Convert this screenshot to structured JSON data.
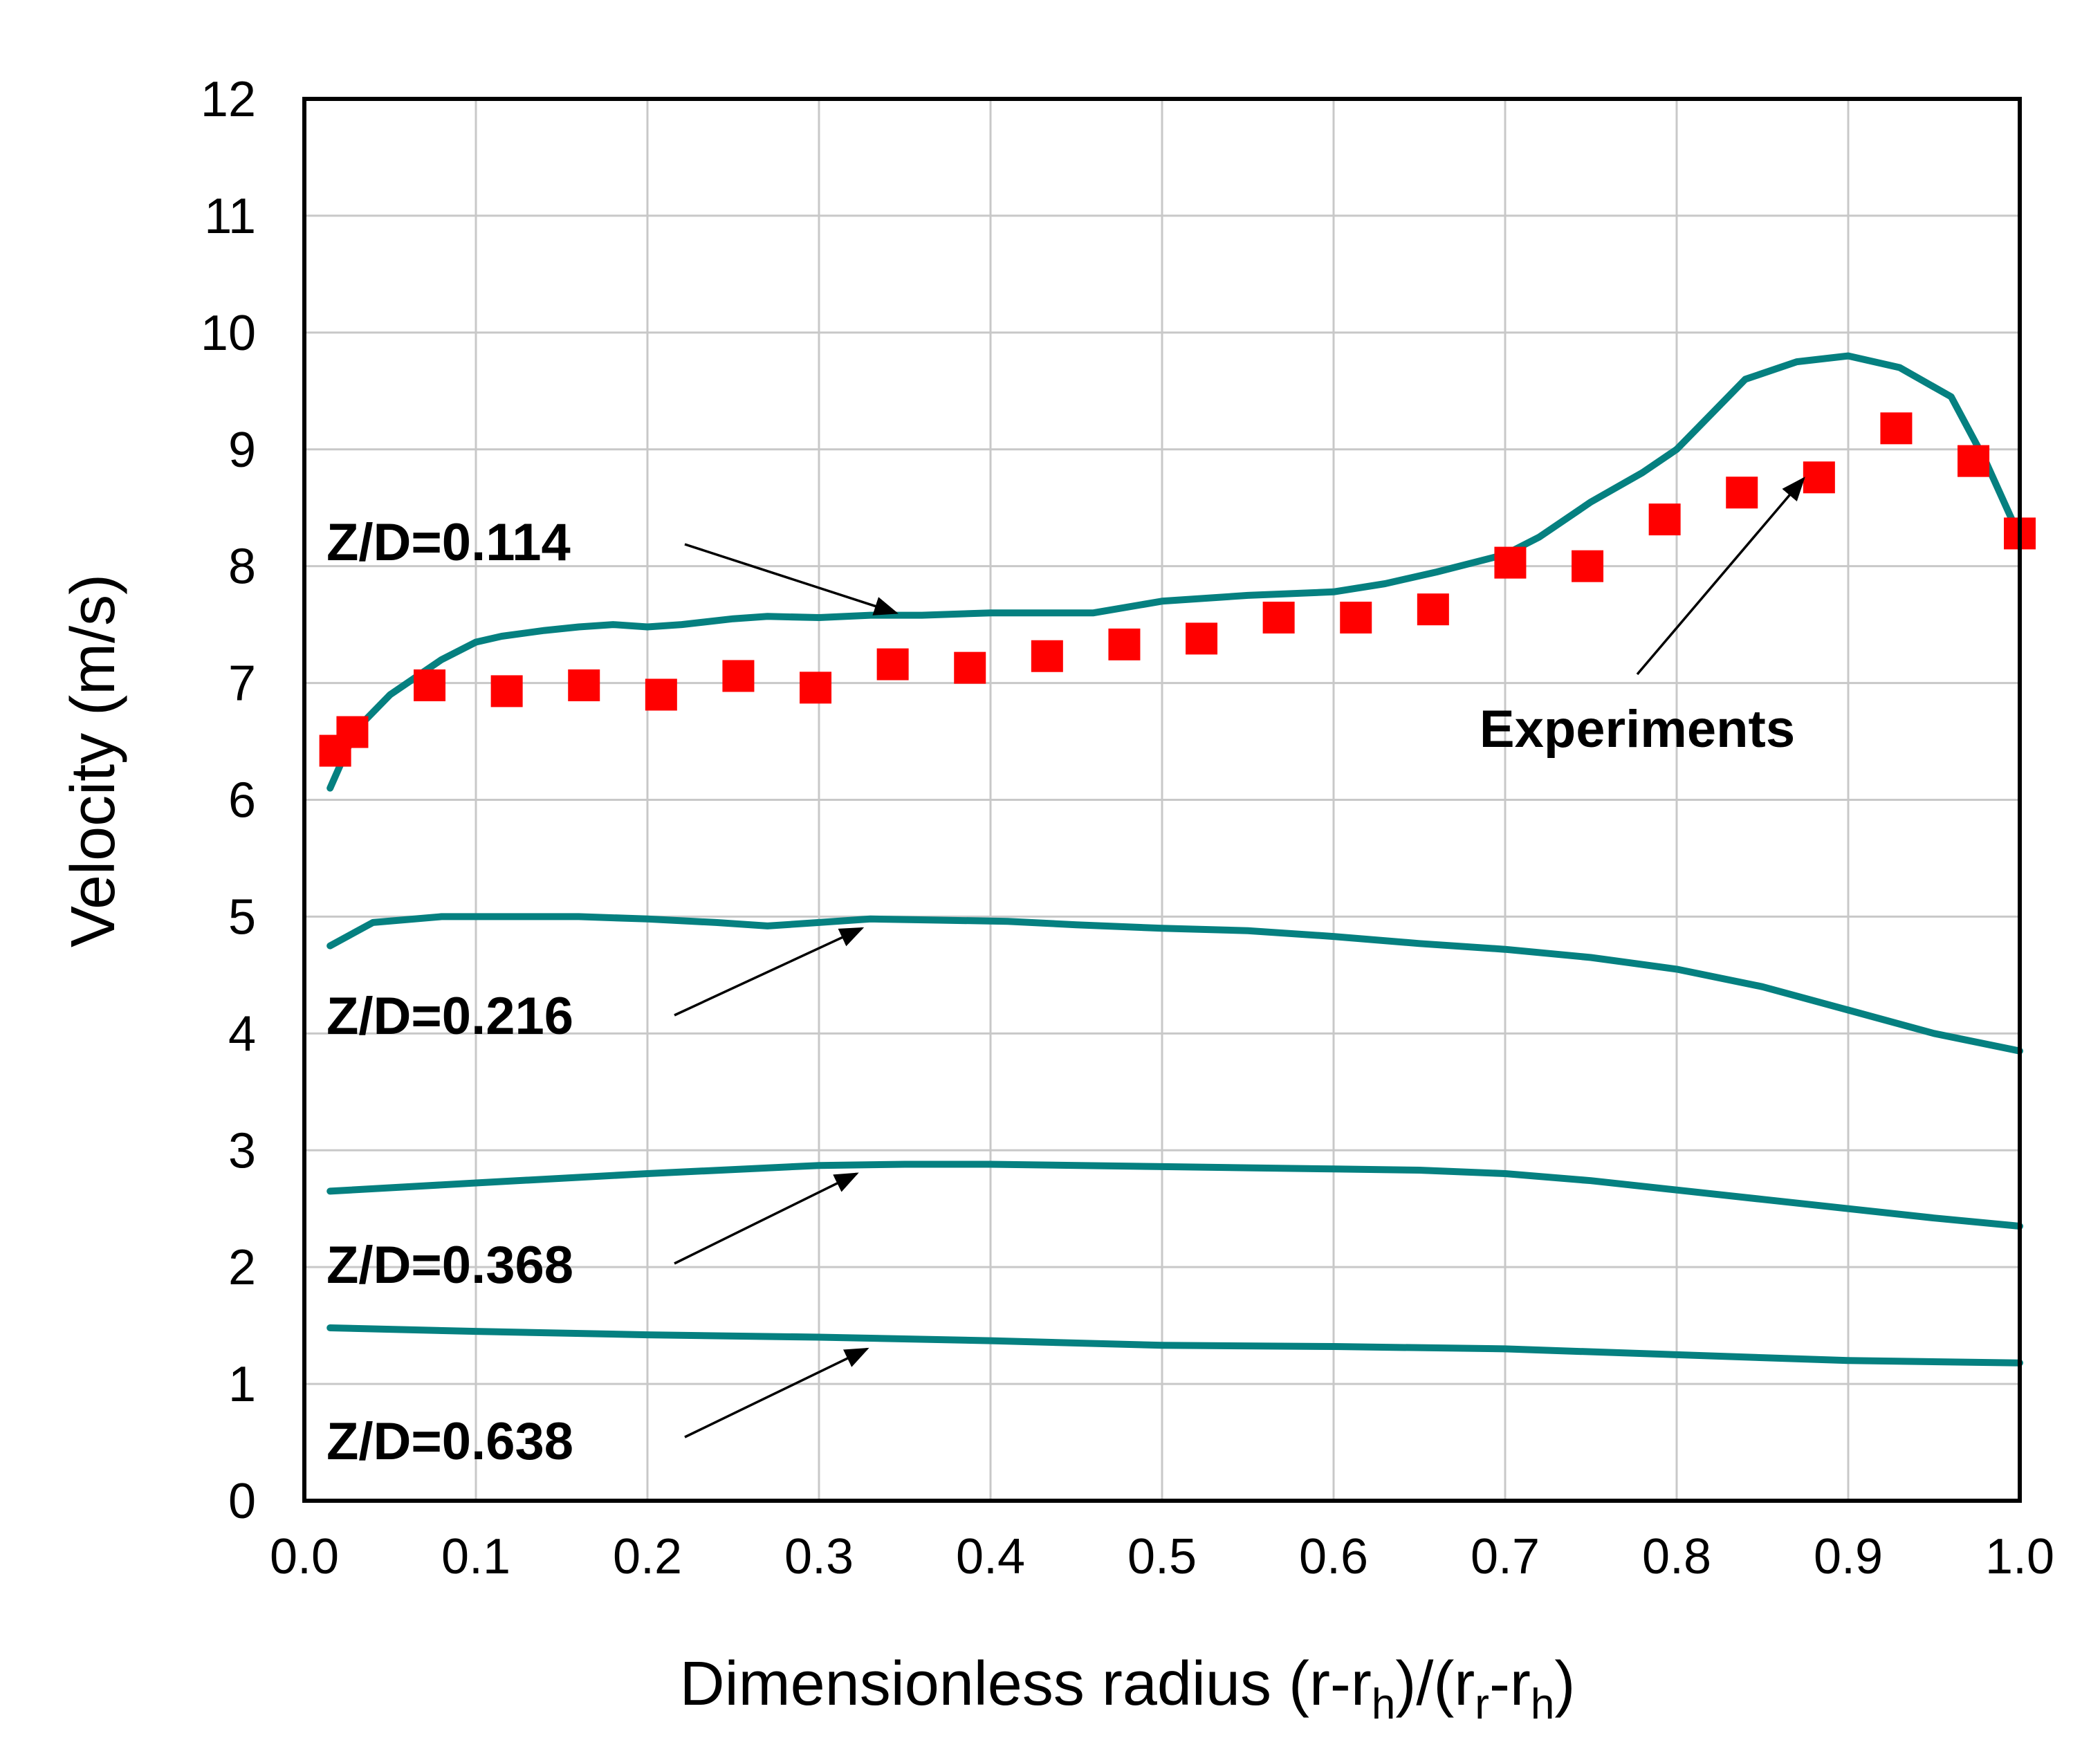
{
  "chart_data": {
    "type": "line",
    "xlabel_main": "Dimensionless radius (r-r",
    "xlabel_sub1": "h",
    "xlabel_mid": ")/(r",
    "xlabel_sub2": "r",
    "xlabel_mid2": "-r",
    "xlabel_sub3": "h",
    "xlabel_end": ")",
    "ylabel": "Velocity (m/s)",
    "xlim": [
      0.0,
      1.0
    ],
    "ylim": [
      0,
      12
    ],
    "x_ticks": [
      0.0,
      0.1,
      0.2,
      0.3,
      0.4,
      0.5,
      0.6,
      0.7,
      0.8,
      0.9,
      1.0
    ],
    "x_tick_labels": [
      "0.0",
      "0.1",
      "0.2",
      "0.3",
      "0.4",
      "0.5",
      "0.6",
      "0.7",
      "0.8",
      "0.9",
      "1.0"
    ],
    "y_ticks": [
      0,
      1,
      2,
      3,
      4,
      5,
      6,
      7,
      8,
      9,
      10,
      11,
      12
    ],
    "y_tick_labels": [
      "0",
      "1",
      "2",
      "3",
      "4",
      "5",
      "6",
      "7",
      "8",
      "9",
      "10",
      "11",
      "12"
    ],
    "grid": true,
    "line_color": "#058080",
    "marker_color": "#ff0000",
    "series": [
      {
        "name": "Z/D=0.114",
        "kind": "line",
        "x": [
          0.015,
          0.03,
          0.05,
          0.08,
          0.1,
          0.115,
          0.14,
          0.16,
          0.18,
          0.2,
          0.22,
          0.25,
          0.27,
          0.3,
          0.33,
          0.36,
          0.4,
          0.43,
          0.46,
          0.5,
          0.55,
          0.6,
          0.63,
          0.66,
          0.7,
          0.72,
          0.75,
          0.78,
          0.8,
          0.82,
          0.84,
          0.87,
          0.9,
          0.93,
          0.96,
          0.98,
          1.0
        ],
        "y": [
          6.1,
          6.6,
          6.9,
          7.2,
          7.35,
          7.4,
          7.45,
          7.48,
          7.5,
          7.48,
          7.5,
          7.55,
          7.57,
          7.56,
          7.58,
          7.58,
          7.6,
          7.6,
          7.6,
          7.7,
          7.75,
          7.78,
          7.85,
          7.95,
          8.1,
          8.25,
          8.55,
          8.8,
          9.0,
          9.3,
          9.6,
          9.75,
          9.8,
          9.7,
          9.45,
          8.9,
          8.25
        ]
      },
      {
        "name": "Z/D=0.216",
        "kind": "line",
        "x": [
          0.015,
          0.04,
          0.08,
          0.12,
          0.16,
          0.2,
          0.24,
          0.27,
          0.3,
          0.33,
          0.37,
          0.41,
          0.45,
          0.5,
          0.55,
          0.6,
          0.65,
          0.7,
          0.75,
          0.8,
          0.85,
          0.9,
          0.95,
          1.0
        ],
        "y": [
          4.75,
          4.95,
          5.0,
          5.0,
          5.0,
          4.98,
          4.95,
          4.92,
          4.95,
          4.98,
          4.97,
          4.96,
          4.93,
          4.9,
          4.88,
          4.83,
          4.77,
          4.72,
          4.65,
          4.55,
          4.4,
          4.2,
          4.0,
          3.85
        ]
      },
      {
        "name": "Z/D=0.368",
        "kind": "line",
        "x": [
          0.015,
          0.1,
          0.2,
          0.3,
          0.35,
          0.4,
          0.5,
          0.55,
          0.6,
          0.65,
          0.7,
          0.75,
          0.8,
          0.85,
          0.9,
          0.95,
          1.0
        ],
        "y": [
          2.65,
          2.72,
          2.8,
          2.87,
          2.88,
          2.88,
          2.86,
          2.85,
          2.84,
          2.83,
          2.8,
          2.74,
          2.66,
          2.58,
          2.5,
          2.42,
          2.35
        ]
      },
      {
        "name": "Z/D=0.638",
        "kind": "line",
        "x": [
          0.015,
          0.1,
          0.2,
          0.3,
          0.4,
          0.5,
          0.6,
          0.7,
          0.8,
          0.9,
          1.0
        ],
        "y": [
          1.48,
          1.45,
          1.42,
          1.4,
          1.37,
          1.33,
          1.32,
          1.3,
          1.25,
          1.2,
          1.18
        ]
      },
      {
        "name": "Experiments",
        "kind": "scatter",
        "marker": "square",
        "x": [
          0.018,
          0.028,
          0.073,
          0.118,
          0.163,
          0.208,
          0.253,
          0.298,
          0.343,
          0.388,
          0.433,
          0.478,
          0.523,
          0.568,
          0.613,
          0.658,
          0.703,
          0.748,
          0.793,
          0.838,
          0.883,
          0.928,
          0.973,
          1.0
        ],
        "y": [
          6.42,
          6.58,
          6.98,
          6.93,
          6.98,
          6.9,
          7.06,
          6.96,
          7.16,
          7.13,
          7.23,
          7.33,
          7.38,
          7.56,
          7.56,
          7.63,
          8.03,
          8.0,
          8.4,
          8.63,
          8.76,
          9.18,
          8.9,
          8.28
        ]
      }
    ],
    "annotations": [
      {
        "text": "Z/D=0.114",
        "arrow_to": {
          "x": 0.345,
          "y": 7.6
        }
      },
      {
        "text": "Z/D=0.216",
        "arrow_to": {
          "x": 0.325,
          "y": 4.9
        }
      },
      {
        "text": "Z/D=0.368",
        "arrow_to": {
          "x": 0.322,
          "y": 2.8
        }
      },
      {
        "text": "Z/D=0.638",
        "arrow_to": {
          "x": 0.328,
          "y": 1.3
        }
      },
      {
        "text": "Experiments",
        "arrow_to": {
          "x": 0.874,
          "y": 8.75
        }
      }
    ]
  }
}
